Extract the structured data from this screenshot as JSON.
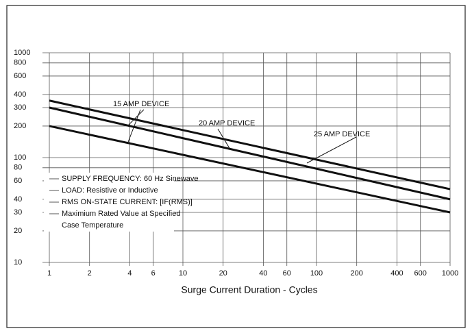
{
  "chart_data": {
    "type": "line",
    "xlabel": "Surge Current Duration - Cycles",
    "x": [
      1,
      1000
    ],
    "series": [
      {
        "name": "15 AMP DEVICE",
        "color": "#111111",
        "values": [
          200,
          30
        ]
      },
      {
        "name": "20 AMP DEVICE",
        "color": "#111111",
        "values": [
          300,
          40
        ]
      },
      {
        "name": "25 AMP DEVICE",
        "color": "#111111",
        "values": [
          350,
          50
        ]
      }
    ],
    "xlim": [
      1,
      1000
    ],
    "xticks": [
      1,
      2,
      4,
      6,
      10,
      20,
      40,
      60,
      100,
      200,
      400,
      600,
      1000
    ],
    "ylim": [
      10,
      1000
    ],
    "yticks": [
      10,
      20,
      30,
      40,
      60,
      80,
      100,
      200,
      300,
      400,
      600,
      800,
      1000
    ],
    "log_x": true,
    "log_y": true,
    "grid": true,
    "notes": [
      "SUPPLY FREQUENCY: 60 Hz Sinewave",
      "LOAD: Resistive or Inductive",
      "RMS ON-STATE CURRENT: [IF(RMS)]",
      "Maximium Rated Value at Specified",
      "Case Temperature"
    ]
  }
}
